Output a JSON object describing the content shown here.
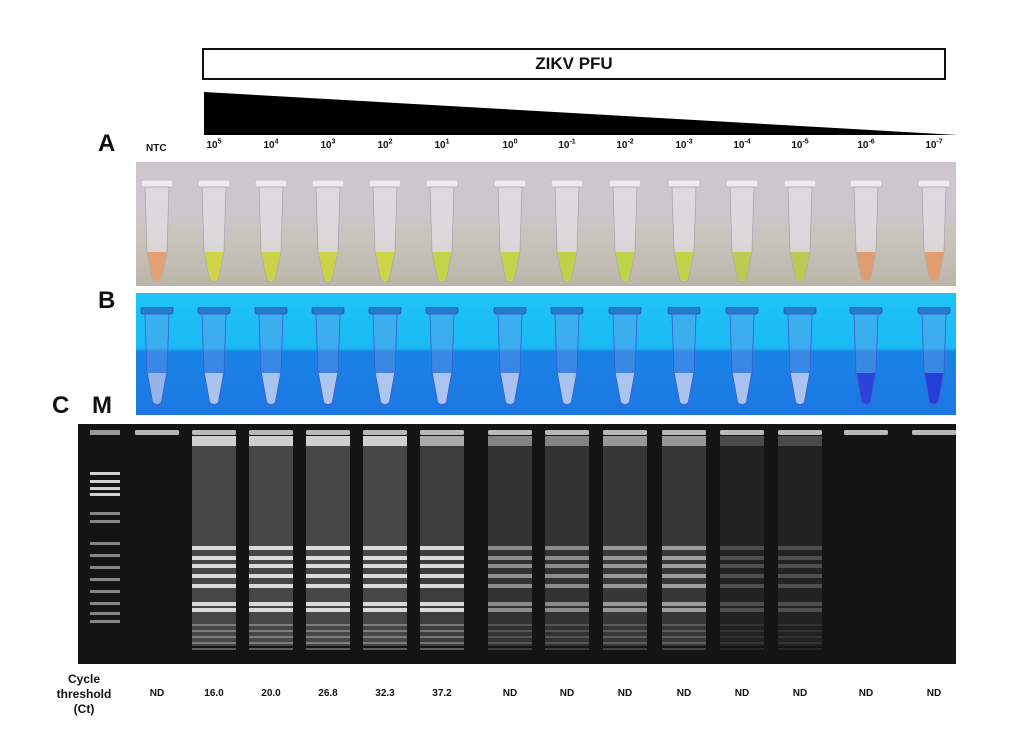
{
  "header": {
    "title": "ZIKV PFU"
  },
  "panels": {
    "a": "A",
    "b": "B",
    "c": "C",
    "marker": "M"
  },
  "ntc_label": "NTC",
  "dilutions": [
    {
      "base": "10",
      "exp": "5"
    },
    {
      "base": "10",
      "exp": "4"
    },
    {
      "base": "10",
      "exp": "3"
    },
    {
      "base": "10",
      "exp": "2"
    },
    {
      "base": "10",
      "exp": "1"
    },
    {
      "base": "10",
      "exp": "0"
    },
    {
      "base": "10",
      "exp": "-1"
    },
    {
      "base": "10",
      "exp": "-2"
    },
    {
      "base": "10",
      "exp": "-3"
    },
    {
      "base": "10",
      "exp": "-4"
    },
    {
      "base": "10",
      "exp": "-5"
    },
    {
      "base": "10",
      "exp": "-6"
    },
    {
      "base": "10",
      "exp": "-7"
    }
  ],
  "tubes_a_colors": [
    "#e79a6a",
    "#cfd23a",
    "#c7d23c",
    "#c9d33c",
    "#cbd53e",
    "#c3d33c",
    "#c1d43e",
    "#bcd13c",
    "#bbd23c",
    "#c1d03c",
    "#b7cc44",
    "#b9c84a",
    "#e2966a",
    "#e39868"
  ],
  "tubes_b_tint": [
    "#a0b7ea",
    "#b6cbee",
    "#b4caef",
    "#b9ccef",
    "#bccdef",
    "#b8cbef",
    "#b5c8ef",
    "#b4caef",
    "#b8cbef",
    "#b6c9ef",
    "#b5c8ef",
    "#b7caef",
    "#2a3cd8",
    "#2436d4"
  ],
  "gel_lanes": [
    {
      "smear": 0.0,
      "bands": 0
    },
    {
      "smear": 1.0,
      "bands": 1.0
    },
    {
      "smear": 1.0,
      "bands": 1.0
    },
    {
      "smear": 1.0,
      "bands": 1.0
    },
    {
      "smear": 1.0,
      "bands": 1.0
    },
    {
      "smear": 0.8,
      "bands": 1.0
    },
    {
      "smear": 0.6,
      "bands": 0.55
    },
    {
      "smear": 0.6,
      "bands": 0.55
    },
    {
      "smear": 0.7,
      "bands": 0.6
    },
    {
      "smear": 0.7,
      "bands": 0.65
    },
    {
      "smear": 0.3,
      "bands": 0.25
    },
    {
      "smear": 0.3,
      "bands": 0.25
    },
    {
      "smear": 0.0,
      "bands": 0
    },
    {
      "smear": 0.0,
      "bands": 0
    }
  ],
  "ct": {
    "label_lines": [
      "Cycle",
      "threshold",
      "(Ct)"
    ],
    "values": [
      "ND",
      "16.0",
      "20.0",
      "26.8",
      "32.3",
      "37.2",
      "ND",
      "ND",
      "ND",
      "ND",
      "ND",
      "ND",
      "ND",
      "ND"
    ]
  }
}
